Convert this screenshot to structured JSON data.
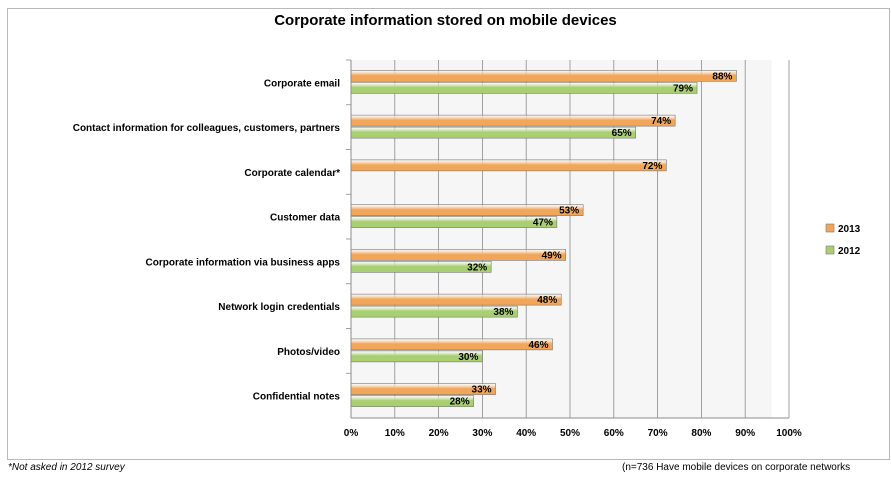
{
  "chart_data": {
    "type": "bar",
    "orientation": "horizontal",
    "title": "Corporate information stored on mobile devices",
    "categories": [
      "Corporate email",
      "Contact information for colleagues, customers, partners",
      "Corporate calendar*",
      "Customer data",
      "Corporate information via business apps",
      "Network login credentials",
      "Photos/video",
      "Confidential notes"
    ],
    "series": [
      {
        "name": "2013",
        "values": [
          88,
          74,
          72,
          53,
          49,
          48,
          46,
          33
        ],
        "labels": [
          "88%",
          "74%",
          "72%",
          "53%",
          "49%",
          "48%",
          "46%",
          "33%"
        ],
        "color": "#f2a65a"
      },
      {
        "name": "2012",
        "values": [
          79,
          65,
          null,
          47,
          32,
          38,
          30,
          28
        ],
        "labels": [
          "79%",
          "65%",
          "",
          "47%",
          "32%",
          "38%",
          "30%",
          "28%"
        ],
        "color": "#a9cf72"
      }
    ],
    "xlim": [
      0,
      100
    ],
    "xticks": [
      "0%",
      "10%",
      "20%",
      "30%",
      "40%",
      "50%",
      "60%",
      "70%",
      "80%",
      "90%",
      "100%"
    ],
    "grid": true,
    "legend_position": "right"
  },
  "footnote": "*Not asked in 2012 survey",
  "sample_note": "(n=736 Have mobile devices on corporate networks"
}
